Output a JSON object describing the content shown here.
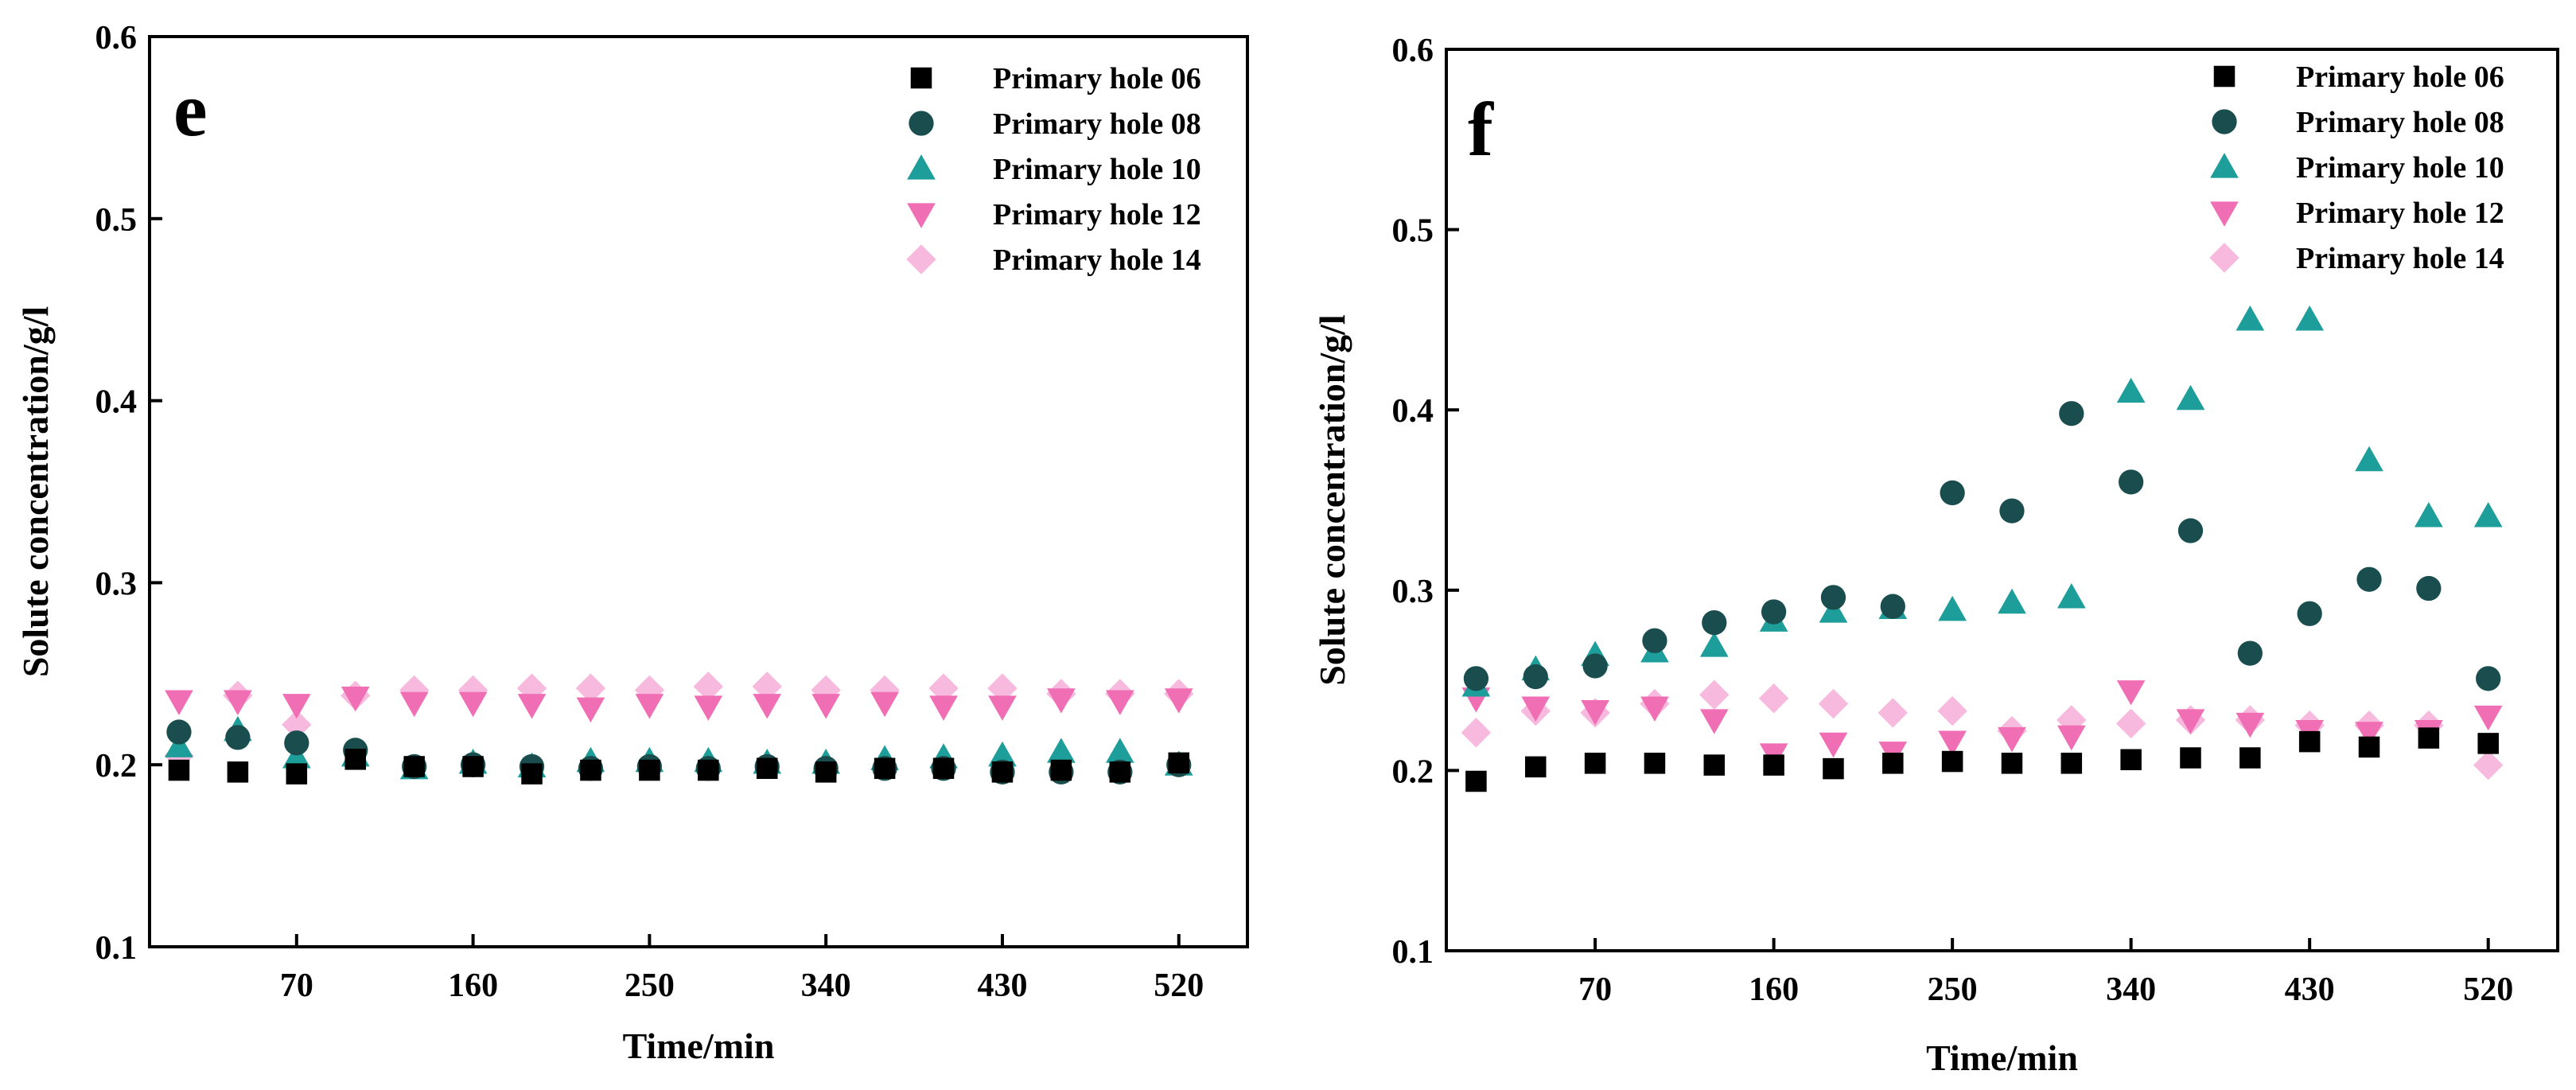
{
  "colors": {
    "Primary hole 06": "#000000",
    "Primary hole 08": "#1a4e4e",
    "Primary hole 10": "#1e9e9a",
    "Primary hole 12": "#f06eb4",
    "Primary hole 14": "#f8b9de"
  },
  "markers": {
    "Primary hole 06": "square",
    "Primary hole 08": "circle",
    "Primary hole 10": "triangle-up",
    "Primary hole 12": "triangle-down",
    "Primary hole 14": "diamond"
  },
  "chart_data": [
    {
      "type": "scatter",
      "panel_label": "e",
      "xlabel": "Time/min",
      "ylabel": "Solute concentration/g/l",
      "xlim": [
        -5,
        555
      ],
      "ylim": [
        0.1,
        0.6
      ],
      "xticks": [
        70,
        160,
        250,
        340,
        430,
        520
      ],
      "yticks": [
        0.1,
        0.2,
        0.3,
        0.4,
        0.5,
        0.6
      ],
      "x": [
        10,
        40,
        70,
        100,
        130,
        160,
        190,
        220,
        250,
        280,
        310,
        340,
        370,
        400,
        430,
        460,
        490,
        520
      ],
      "legend": "top-right",
      "series": [
        {
          "name": "Primary hole 06",
          "values": [
            0.197,
            0.196,
            0.195,
            0.203,
            0.199,
            0.199,
            0.195,
            0.197,
            0.197,
            0.197,
            0.198,
            0.196,
            0.198,
            0.198,
            0.196,
            0.197,
            0.196,
            0.201
          ]
        },
        {
          "name": "Primary hole 08",
          "values": [
            0.218,
            0.215,
            0.212,
            0.208,
            0.199,
            0.2,
            0.199,
            0.198,
            0.199,
            0.198,
            0.199,
            0.198,
            0.198,
            0.198,
            0.196,
            0.196,
            0.196,
            0.2
          ]
        },
        {
          "name": "Primary hole 10",
          "values": [
            0.21,
            0.219,
            0.204,
            0.205,
            0.198,
            0.201,
            0.199,
            0.202,
            0.202,
            0.202,
            0.201,
            0.201,
            0.203,
            0.204,
            0.205,
            0.207,
            0.207,
            0.2
          ]
        },
        {
          "name": "Primary hole 12",
          "values": [
            0.235,
            0.235,
            0.233,
            0.237,
            0.234,
            0.234,
            0.233,
            0.231,
            0.233,
            0.232,
            0.233,
            0.233,
            0.234,
            0.232,
            0.232,
            0.236,
            0.235,
            0.236
          ]
        },
        {
          "name": "Primary hole 14",
          "values": [
            0.205,
            0.238,
            0.222,
            0.238,
            0.241,
            0.241,
            0.242,
            0.242,
            0.241,
            0.243,
            0.243,
            0.241,
            0.241,
            0.242,
            0.242,
            0.239,
            0.239,
            0.239
          ]
        }
      ]
    },
    {
      "type": "scatter",
      "panel_label": "f",
      "xlabel": "Time/min",
      "ylabel": "Solute concentration/g/l",
      "xlim": [
        -5,
        555
      ],
      "ylim": [
        0.1,
        0.6
      ],
      "xticks": [
        70,
        160,
        250,
        340,
        430,
        520
      ],
      "yticks": [
        0.1,
        0.2,
        0.3,
        0.4,
        0.5,
        0.6
      ],
      "x": [
        10,
        40,
        70,
        100,
        130,
        160,
        190,
        220,
        250,
        280,
        310,
        340,
        370,
        400,
        430,
        460,
        490,
        520
      ],
      "legend": "top-right",
      "series": [
        {
          "name": "Primary hole 06",
          "values": [
            0.194,
            0.202,
            0.204,
            0.204,
            0.203,
            0.203,
            0.201,
            0.204,
            0.205,
            0.204,
            0.204,
            0.206,
            0.207,
            0.207,
            0.216,
            0.213,
            0.218,
            0.215
          ]
        },
        {
          "name": "Primary hole 08",
          "values": [
            0.251,
            0.252,
            0.258,
            0.272,
            0.282,
            0.288,
            0.296,
            0.291,
            0.354,
            0.344,
            0.398,
            0.36,
            0.333,
            0.265,
            0.287,
            0.306,
            0.301,
            0.251
          ]
        },
        {
          "name": "Primary hole 10",
          "values": [
            0.247,
            0.256,
            0.264,
            0.266,
            0.269,
            0.283,
            0.288,
            0.29,
            0.289,
            0.293,
            0.296,
            0.41,
            0.406,
            0.45,
            0.45,
            0.372,
            0.341,
            0.341
          ]
        },
        {
          "name": "Primary hole 12",
          "values": [
            0.24,
            0.235,
            0.233,
            0.235,
            0.228,
            0.209,
            0.215,
            0.21,
            0.216,
            0.218,
            0.219,
            0.244,
            0.228,
            0.226,
            0.222,
            0.221,
            0.222,
            0.23
          ]
        },
        {
          "name": "Primary hole 14",
          "values": [
            0.221,
            0.233,
            0.232,
            0.237,
            0.242,
            0.24,
            0.237,
            0.232,
            0.233,
            0.222,
            0.228,
            0.226,
            0.228,
            0.228,
            0.225,
            0.225,
            0.225,
            0.203
          ]
        }
      ]
    }
  ]
}
